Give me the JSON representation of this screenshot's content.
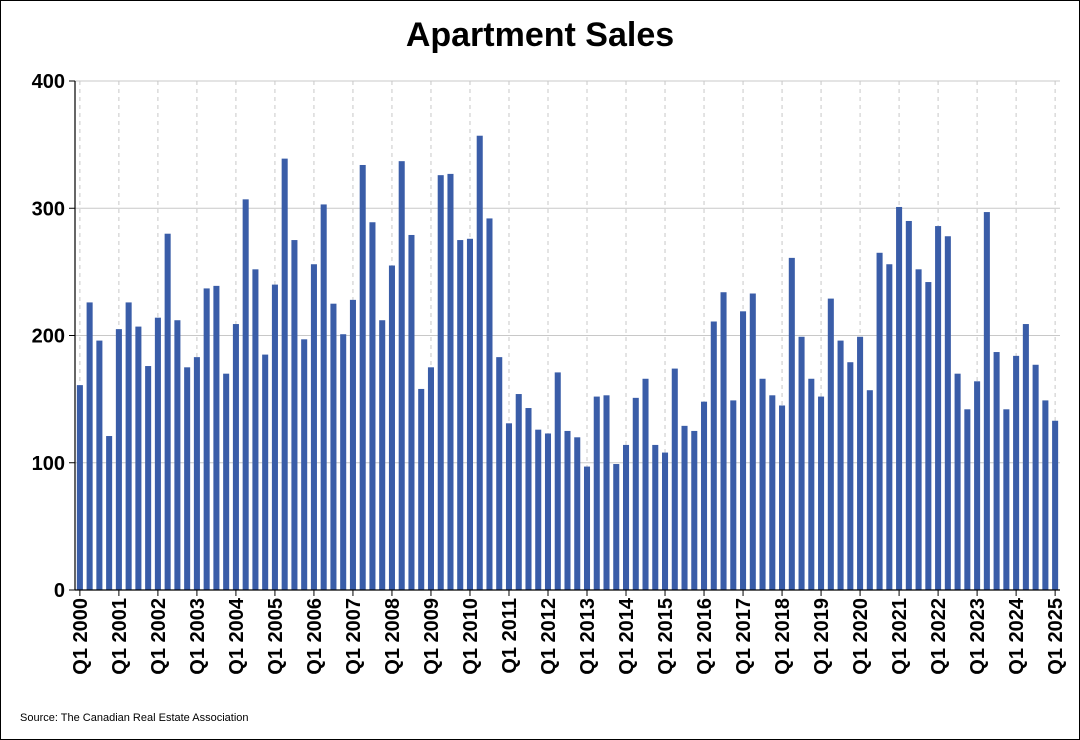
{
  "chart_data": {
    "type": "bar",
    "title": "Apartment Sales",
    "xlabel": "",
    "ylabel": "",
    "ylim": [
      0,
      400
    ],
    "yticks": [
      0,
      100,
      200,
      300,
      400
    ],
    "grid": true,
    "bar_color": "#3a5da8",
    "xtick_labels": [
      "Q1 2000",
      "Q1 2001",
      "Q1 2002",
      "Q1 2003",
      "Q1 2004",
      "Q1 2005",
      "Q1 2006",
      "Q1 2007",
      "Q1 2008",
      "Q1 2009",
      "Q1 2010",
      "Q1 2011",
      "Q1 2012",
      "Q1 2013",
      "Q1 2014",
      "Q1 2015",
      "Q1 2016",
      "Q1 2017",
      "Q1 2018",
      "Q1 2019",
      "Q1 2020",
      "Q1 2021",
      "Q1 2022",
      "Q1 2023",
      "Q1 2024",
      "Q1 2025"
    ],
    "values": [
      161,
      226,
      196,
      121,
      205,
      226,
      207,
      176,
      214,
      280,
      212,
      175,
      183,
      237,
      239,
      170,
      209,
      307,
      252,
      185,
      240,
      339,
      275,
      197,
      256,
      303,
      225,
      201,
      228,
      334,
      289,
      212,
      255,
      337,
      279,
      158,
      175,
      326,
      327,
      275,
      276,
      357,
      292,
      183,
      131,
      154,
      143,
      126,
      123,
      171,
      125,
      120,
      97,
      152,
      153,
      99,
      114,
      151,
      166,
      114,
      108,
      174,
      129,
      125,
      148,
      211,
      234,
      149,
      219,
      233,
      166,
      153,
      145,
      261,
      199,
      166,
      152,
      229,
      196,
      179,
      199,
      157,
      265,
      256,
      301,
      290,
      252,
      242,
      286,
      278,
      170,
      142,
      164,
      297,
      187,
      142,
      184,
      209,
      177,
      149,
      133
    ]
  },
  "source": "Source: The Canadian Real Estate Association"
}
